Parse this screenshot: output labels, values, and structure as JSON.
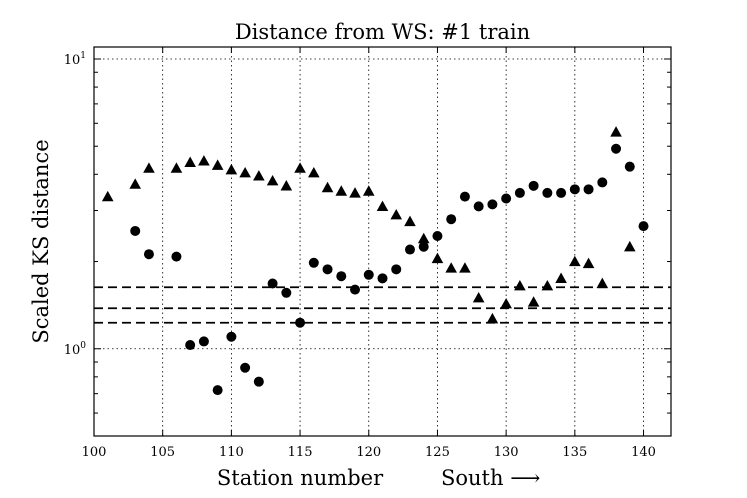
{
  "chart_data": {
    "type": "scatter",
    "title": "Distance from WS: #1 train",
    "xlabel": "Station number",
    "xlabel_note": "South ⟶",
    "ylabel": "Scaled KS distance",
    "xlim": [
      100,
      142
    ],
    "ylim": [
      0.5,
      11
    ],
    "y_scale": "log",
    "grid": true,
    "x_ticks": [
      "100",
      "105",
      "110",
      "115",
      "120",
      "125",
      "130",
      "135",
      "140"
    ],
    "x_tick_values": [
      100,
      105,
      110,
      115,
      120,
      125,
      130,
      135,
      140
    ],
    "y_ticks": [
      {
        "base": "10",
        "exp": "1",
        "value": 10
      },
      {
        "base": "10",
        "exp": "0",
        "value": 1
      }
    ],
    "hlines": [
      1.63,
      1.38,
      1.23
    ],
    "series": [
      {
        "marker": "triangle",
        "points": [
          [
            101,
            3.35
          ],
          [
            103,
            3.7
          ],
          [
            104,
            4.2
          ],
          [
            106,
            4.2
          ],
          [
            107,
            4.4
          ],
          [
            108,
            4.45
          ],
          [
            109,
            4.3
          ],
          [
            110,
            4.15
          ],
          [
            111,
            4.05
          ],
          [
            112,
            3.95
          ],
          [
            113,
            3.8
          ],
          [
            114,
            3.65
          ],
          [
            115,
            4.2
          ],
          [
            116,
            4.05
          ],
          [
            117,
            3.6
          ],
          [
            118,
            3.5
          ],
          [
            119,
            3.45
          ],
          [
            120,
            3.5
          ],
          [
            121,
            3.1
          ],
          [
            122,
            2.9
          ],
          [
            123,
            2.75
          ],
          [
            124,
            2.4
          ],
          [
            125,
            2.05
          ],
          [
            126,
            1.9
          ],
          [
            127,
            1.9
          ],
          [
            128,
            1.5
          ],
          [
            129,
            1.27
          ],
          [
            130,
            1.43
          ],
          [
            131,
            1.65
          ],
          [
            132,
            1.45
          ],
          [
            133,
            1.65
          ],
          [
            134,
            1.75
          ],
          [
            135,
            2.0
          ],
          [
            136,
            1.97
          ],
          [
            137,
            1.68
          ],
          [
            138,
            5.6
          ],
          [
            139,
            2.25
          ]
        ]
      },
      {
        "marker": "circle",
        "points": [
          [
            103,
            2.55
          ],
          [
            104,
            2.12
          ],
          [
            106,
            2.08
          ],
          [
            107,
            1.03
          ],
          [
            108,
            1.06
          ],
          [
            109,
            0.72
          ],
          [
            110,
            1.1
          ],
          [
            111,
            0.86
          ],
          [
            112,
            0.77
          ],
          [
            113,
            1.68
          ],
          [
            114,
            1.56
          ],
          [
            115,
            1.23
          ],
          [
            116,
            1.98
          ],
          [
            117,
            1.88
          ],
          [
            118,
            1.78
          ],
          [
            119,
            1.6
          ],
          [
            120,
            1.8
          ],
          [
            121,
            1.75
          ],
          [
            122,
            1.88
          ],
          [
            123,
            2.2
          ],
          [
            124,
            2.25
          ],
          [
            125,
            2.45
          ],
          [
            126,
            2.8
          ],
          [
            127,
            3.35
          ],
          [
            128,
            3.1
          ],
          [
            129,
            3.15
          ],
          [
            130,
            3.3
          ],
          [
            131,
            3.45
          ],
          [
            132,
            3.65
          ],
          [
            133,
            3.45
          ],
          [
            134,
            3.45
          ],
          [
            135,
            3.55
          ],
          [
            136,
            3.55
          ],
          [
            137,
            3.75
          ],
          [
            138,
            4.9
          ],
          [
            139,
            4.25
          ],
          [
            140,
            2.65
          ]
        ]
      }
    ]
  }
}
